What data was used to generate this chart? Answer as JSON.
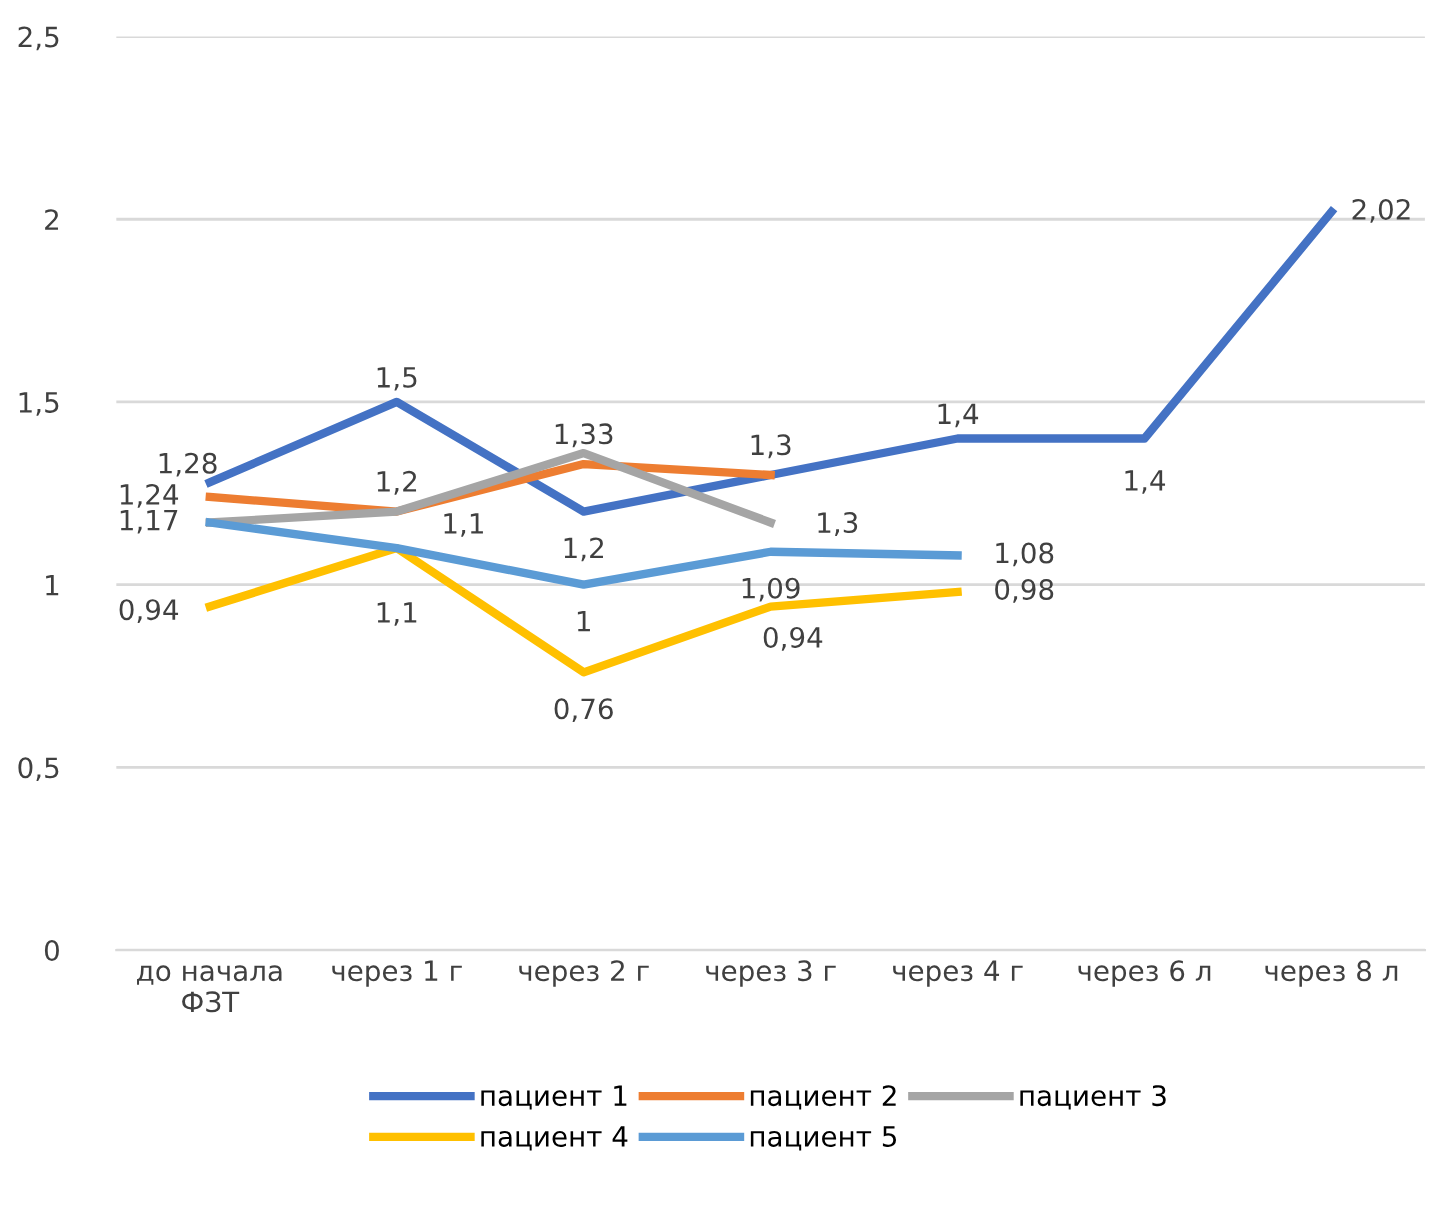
{
  "chart_data": {
    "type": "line",
    "categories": [
      "до начала\nФЗТ",
      "через 1 г",
      "через 2 г",
      "через 3 г",
      "через 4 г",
      "через 6 л",
      "через 8 л"
    ],
    "series": [
      {
        "name": "пациент 1",
        "color": "#4472c4",
        "values": [
          1.28,
          1.5,
          1.2,
          1.3,
          1.4,
          1.4,
          2.02
        ],
        "value_labels": [
          "1,28",
          "1,5",
          "1,2",
          "1,3",
          "1,4",
          "1,4",
          "2,02"
        ]
      },
      {
        "name": "пациент 2",
        "color": "#ed7d31",
        "values": [
          1.24,
          1.2,
          1.33,
          1.3,
          null,
          null,
          null
        ],
        "value_labels": [
          "1,24",
          "1,2",
          "1,33",
          "1,3",
          null,
          null,
          null
        ]
      },
      {
        "name": "пациент 3",
        "color": "#a5a5a5",
        "values": [
          1.17,
          1.2,
          1.36,
          1.17,
          null,
          null,
          null
        ],
        "value_labels": [
          null,
          null,
          null,
          null,
          null,
          null,
          null
        ]
      },
      {
        "name": "пациент 4",
        "color": "#ffc000",
        "values": [
          0.94,
          1.1,
          0.76,
          0.94,
          0.98,
          null,
          null
        ],
        "value_labels": [
          "0,94",
          "1,1",
          "0,76",
          "0,94",
          "0,98",
          null,
          null
        ]
      },
      {
        "name": "пациент 5",
        "color": "#5b9bd5",
        "values": [
          1.17,
          1.1,
          1.0,
          1.09,
          1.08,
          null,
          null
        ],
        "value_labels": [
          "1,17",
          "1,1",
          "1",
          "1,09",
          "1,08",
          null,
          null
        ]
      }
    ],
    "ylim": [
      0,
      2.5
    ],
    "yticks": [
      0,
      {
        "value": 0.5,
        "label": "0,5"
      },
      1,
      {
        "value": 1.5,
        "label": "1,5"
      },
      2,
      {
        "value": 2.5,
        "label": "2,5"
      }
    ],
    "grid": "y",
    "legend": "bottom",
    "marker": "none",
    "line_style": "solid"
  }
}
